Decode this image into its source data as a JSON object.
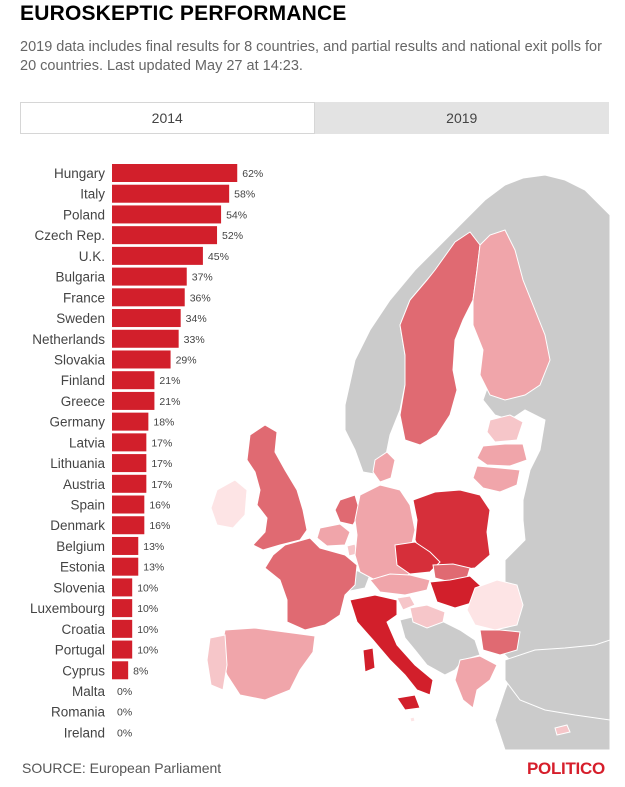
{
  "header": {
    "title": "EUROSKEPTIC PERFORMANCE",
    "subtitle": "2019 data includes final results for 8 countries, and partial results and national exit polls for 20 countries. Last updated May 27 at 14:23."
  },
  "tabs": [
    {
      "label": "2014",
      "active": false
    },
    {
      "label": "2019",
      "active": true
    }
  ],
  "chart_data": {
    "type": "bar",
    "orientation": "horizontal",
    "categories": [
      "Hungary",
      "Italy",
      "Poland",
      "Czech Rep.",
      "U.K.",
      "Bulgaria",
      "France",
      "Sweden",
      "Netherlands",
      "Slovakia",
      "Finland",
      "Greece",
      "Germany",
      "Latvia",
      "Lithuania",
      "Austria",
      "Spain",
      "Denmark",
      "Belgium",
      "Estonia",
      "Slovenia",
      "Luxembourg",
      "Croatia",
      "Portugal",
      "Cyprus",
      "Malta",
      "Romania",
      "Ireland"
    ],
    "values": [
      62,
      58,
      54,
      52,
      45,
      37,
      36,
      34,
      33,
      29,
      21,
      21,
      18,
      17,
      17,
      17,
      16,
      16,
      13,
      13,
      10,
      10,
      10,
      10,
      8,
      0,
      0,
      0
    ],
    "value_labels": [
      "62%",
      "58%",
      "54%",
      "52%",
      "45%",
      "37%",
      "36%",
      "34%",
      "33%",
      "29%",
      "21%",
      "21%",
      "18%",
      "17%",
      "17%",
      "17%",
      "16%",
      "16%",
      "13%",
      "13%",
      "10%",
      "10%",
      "10%",
      "10%",
      "8%",
      "0%",
      "0%",
      "0%"
    ],
    "bar_color": "#d21f2b"
  },
  "map_colors": {
    "non_eu": "#cbcbcb",
    "sea": "#ffffff",
    "border": "#ffffff"
  },
  "footer": {
    "source": "SOURCE: European Parliament",
    "logo": "POLITICO"
  }
}
